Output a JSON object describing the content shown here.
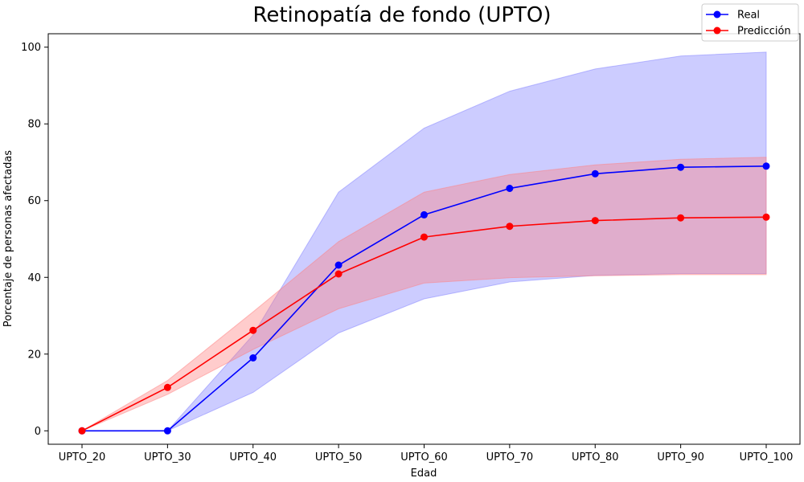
{
  "chart_data": {
    "type": "line",
    "title": "Retinopatía de fondo (UPTO)",
    "xlabel": "Edad",
    "ylabel": "Porcentaje de personas afectadas",
    "categories": [
      "UPTO_20",
      "UPTO_30",
      "UPTO_40",
      "UPTO_50",
      "UPTO_60",
      "UPTO_70",
      "UPTO_80",
      "UPTO_90",
      "UPTO_100"
    ],
    "ylim": [
      -3.5,
      103.5
    ],
    "yticks": [
      0,
      20,
      40,
      60,
      80,
      100
    ],
    "grid": false,
    "legend_position": "top-right",
    "series": [
      {
        "name": "Real",
        "color": "#0000ff",
        "band_color": "#8080ff",
        "values": [
          0,
          0,
          19,
          43.2,
          56.3,
          63.2,
          67,
          68.7,
          69
        ],
        "lower": [
          0,
          0,
          10,
          25.5,
          34.4,
          38.8,
          40.5,
          41,
          41
        ],
        "upper": [
          0,
          0,
          25,
          62.2,
          78.9,
          88.5,
          94.3,
          97.7,
          98.7
        ]
      },
      {
        "name": "Predicción",
        "color": "#ff0000",
        "band_color": "#ff8080",
        "values": [
          0,
          11.3,
          26.2,
          40.9,
          50.5,
          53.3,
          54.8,
          55.5,
          55.7
        ],
        "lower": [
          0,
          9.5,
          21.2,
          31.8,
          38.5,
          39.9,
          40.4,
          40.7,
          40.7
        ],
        "upper": [
          0,
          13.1,
          31,
          49.3,
          62.2,
          66.8,
          69.3,
          70.8,
          71.3
        ]
      }
    ]
  }
}
